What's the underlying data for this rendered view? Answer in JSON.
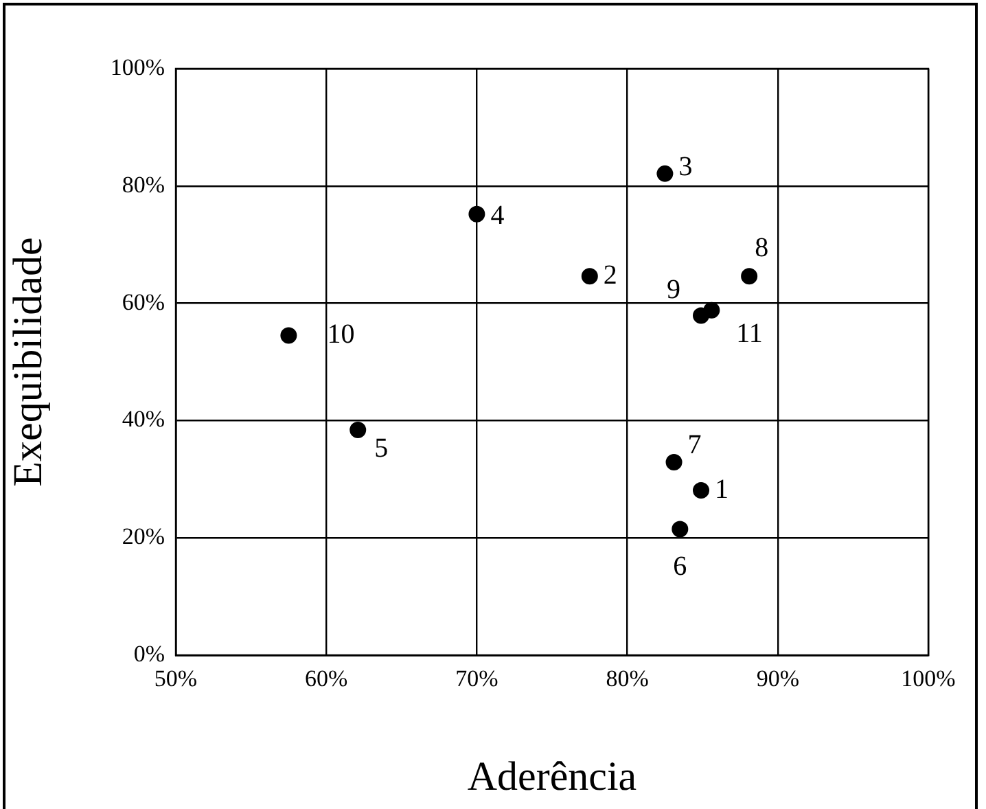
{
  "chart_data": {
    "type": "scatter",
    "xlabel": "Aderência",
    "ylabel": "Exequibilidade",
    "x": [
      84.9,
      77.5,
      82.5,
      70.0,
      62.1,
      83.5,
      83.1,
      88.1,
      84.9,
      57.5,
      85.6
    ],
    "values": [
      28.1,
      64.6,
      82.1,
      75.2,
      38.4,
      21.5,
      32.9,
      64.6,
      57.9,
      54.5,
      58.8
    ],
    "color": "#000000",
    "marker": "circle",
    "grid": true,
    "xlim": [
      50,
      100
    ],
    "xticks": [
      {
        "value": 50,
        "label": "50%"
      },
      {
        "value": 60,
        "label": "60%"
      },
      {
        "value": 70,
        "label": "70%"
      },
      {
        "value": 80,
        "label": "80%"
      },
      {
        "value": 90,
        "label": "90%"
      },
      {
        "value": 100,
        "label": "100%"
      }
    ],
    "ylim": [
      0,
      100
    ],
    "yticks": [
      {
        "value": 0,
        "label": "0%"
      },
      {
        "value": 20,
        "label": "20%"
      },
      {
        "value": 40,
        "label": "40%"
      },
      {
        "value": 60,
        "label": "60%"
      },
      {
        "value": 80,
        "label": "80%"
      },
      {
        "value": 100,
        "label": "100%"
      }
    ],
    "annotations": [
      {
        "text": "1",
        "x": 84.9,
        "y": 28.1
      },
      {
        "text": "2",
        "x": 77.5,
        "y": 64.6
      },
      {
        "text": "3",
        "x": 82.5,
        "y": 82.1
      },
      {
        "text": "4",
        "x": 70.0,
        "y": 75.2
      },
      {
        "text": "5",
        "x": 62.1,
        "y": 38.4
      },
      {
        "text": "6",
        "x": 83.5,
        "y": 21.5
      },
      {
        "text": "7",
        "x": 83.1,
        "y": 32.9
      },
      {
        "text": "8",
        "x": 88.1,
        "y": 64.6
      },
      {
        "text": "9",
        "x": 84.9,
        "y": 57.9
      },
      {
        "text": "10",
        "x": 57.5,
        "y": 54.5
      },
      {
        "text": "11",
        "x": 85.6,
        "y": 58.8
      }
    ]
  }
}
